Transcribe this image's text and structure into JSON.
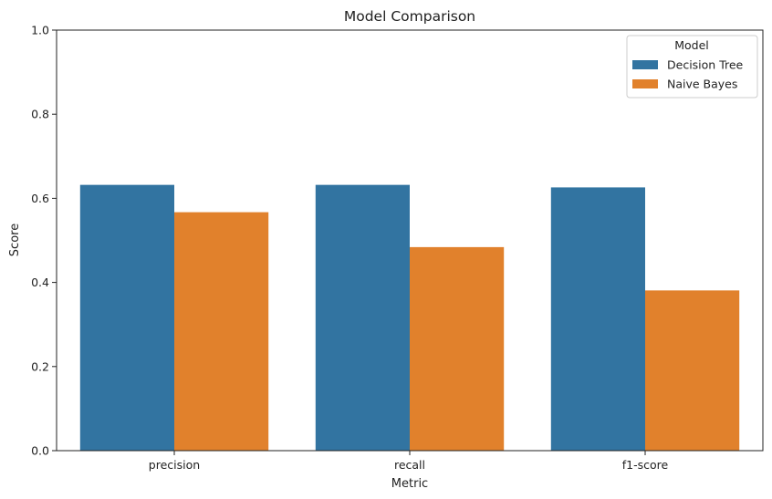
{
  "chart_data": {
    "type": "bar",
    "title": "Model Comparison",
    "xlabel": "Metric",
    "ylabel": "Score",
    "categories": [
      "precision",
      "recall",
      "f1-score"
    ],
    "series": [
      {
        "name": "Decision Tree",
        "color": "#3274a1",
        "values": [
          0.632,
          0.632,
          0.626
        ]
      },
      {
        "name": "Naive Bayes",
        "color": "#e1812c",
        "values": [
          0.567,
          0.484,
          0.381
        ]
      }
    ],
    "ylim": [
      0,
      1.0
    ],
    "yticks": [
      "0.0",
      "0.2",
      "0.4",
      "0.6",
      "0.8",
      "1.0"
    ],
    "grid": false,
    "legend": {
      "title": "Model",
      "position": "top-right"
    }
  }
}
